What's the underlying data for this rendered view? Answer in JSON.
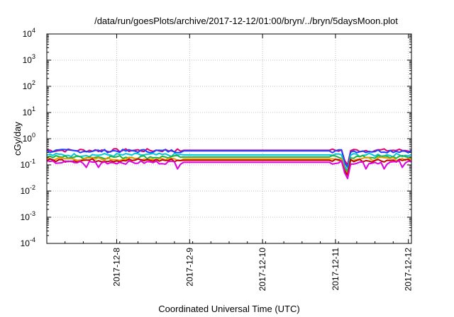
{
  "chart_data": {
    "type": "line",
    "title": "/data/run/goesPlots/archive/2017-12-12/01:00/bryn/../bryn/5daysMoon.plot",
    "xlabel": "Coordinated Universal Time (UTC)",
    "ylabel": "cGy/day",
    "y_scale": "log",
    "ylim": [
      0.0001,
      10000
    ],
    "y_tick_exponents": [
      -4,
      -3,
      -2,
      -1,
      0,
      1,
      2,
      3,
      4
    ],
    "xlim": [
      "2017-12-07T01:00",
      "2017-12-12T01:00"
    ],
    "x_ticks": [
      {
        "label": "2017-12-8",
        "time": "2017-12-08T00:00"
      },
      {
        "label": "2017-12-9",
        "time": "2017-12-09T00:00"
      },
      {
        "label": "2017-12-10",
        "time": "2017-12-10T00:00"
      },
      {
        "label": "2017-12-11",
        "time": "2017-12-11T00:00"
      },
      {
        "label": "2017-12-12",
        "time": "2017-12-12T00:00"
      }
    ],
    "grid": true,
    "legend": "none",
    "series": [
      {
        "color": "#e0006e",
        "baseline": 0.36,
        "gap": [
          "2017-12-08T21:00",
          "2017-12-10T23:00"
        ],
        "dips": [
          [
            "2017-12-11T03:00",
            0.15
          ],
          [
            "2017-12-11T04:00",
            0.1
          ]
        ]
      },
      {
        "color": "#1e40ff",
        "baseline": 0.34,
        "gap": [
          "2017-12-08T21:00",
          "2017-12-10T23:00"
        ],
        "dips": [
          [
            "2017-12-11T03:00",
            0.12
          ],
          [
            "2017-12-11T04:00",
            0.08
          ]
        ]
      },
      {
        "color": "#00c8d8",
        "baseline": 0.24,
        "gap": [
          "2017-12-08T21:00",
          "2017-12-10T23:00"
        ],
        "dips": [
          [
            "2017-12-11T03:00",
            0.09
          ],
          [
            "2017-12-11T04:00",
            0.06
          ]
        ]
      },
      {
        "color": "#20b040",
        "baseline": 0.2,
        "gap": [
          "2017-12-08T21:00",
          "2017-12-10T23:00"
        ],
        "dips": [
          [
            "2017-12-11T03:00",
            0.075
          ],
          [
            "2017-12-11T04:00",
            0.05
          ]
        ]
      },
      {
        "color": "#e0a000",
        "baseline": 0.17,
        "gap": [
          "2017-12-08T21:00",
          "2017-12-10T23:00"
        ],
        "dips": [
          [
            "2017-12-11T03:00",
            0.065
          ],
          [
            "2017-12-11T04:00",
            0.045
          ]
        ]
      },
      {
        "color": "#c00000",
        "baseline": 0.15,
        "gap": [
          "2017-12-08T21:00",
          "2017-12-10T23:00"
        ],
        "dips": [
          [
            "2017-12-11T03:00",
            0.06
          ],
          [
            "2017-12-11T04:00",
            0.04
          ]
        ]
      },
      {
        "color": "#e000e0",
        "baseline": 0.125,
        "gap": [
          "2017-12-08T21:00",
          "2017-12-10T23:00"
        ],
        "dips": [
          [
            "2017-12-07T14:00",
            0.08
          ],
          [
            "2017-12-07T18:00",
            0.08
          ],
          [
            "2017-12-08T20:00",
            0.07
          ],
          [
            "2017-12-11T03:00",
            0.05
          ],
          [
            "2017-12-11T04:00",
            0.03
          ],
          [
            "2017-12-11T10:00",
            0.07
          ],
          [
            "2017-12-11T16:00",
            0.07
          ],
          [
            "2017-12-11T22:00",
            0.08
          ]
        ]
      }
    ]
  }
}
